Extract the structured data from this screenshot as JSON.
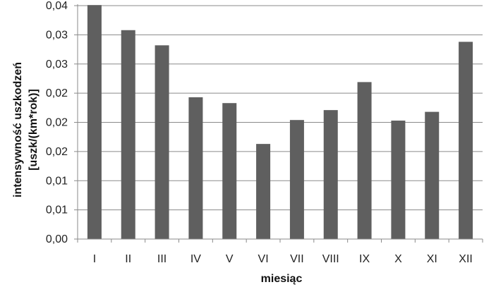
{
  "chart_data": {
    "type": "bar",
    "xlabel": "miesiąc",
    "ylabel_lines": [
      "intensywność uszkodzeń",
      "[uszk/(km*rok)]"
    ],
    "categories": [
      "I",
      "II",
      "III",
      "IV",
      "V",
      "VI",
      "VII",
      "VIII",
      "IX",
      "X",
      "XI",
      "XII"
    ],
    "values": [
      0.0401,
      0.0358,
      0.0332,
      0.0243,
      0.0233,
      0.0163,
      0.0204,
      0.0221,
      0.0269,
      0.0203,
      0.0218,
      0.0338
    ],
    "ylim": [
      0,
      0.04
    ],
    "yticks": [
      0,
      0.005,
      0.01,
      0.015,
      0.02,
      0.025,
      0.03,
      0.035,
      0.04
    ],
    "ytick_labels": [
      "0,00",
      "0,01",
      "0,01",
      "0,02",
      "0,02",
      "0,02",
      "0,03",
      "0,03",
      "0,04"
    ],
    "top_tick_label": "0,04",
    "grid": true,
    "bar_color": "#5f5f5f",
    "grid_color": "#8a8a8a"
  }
}
